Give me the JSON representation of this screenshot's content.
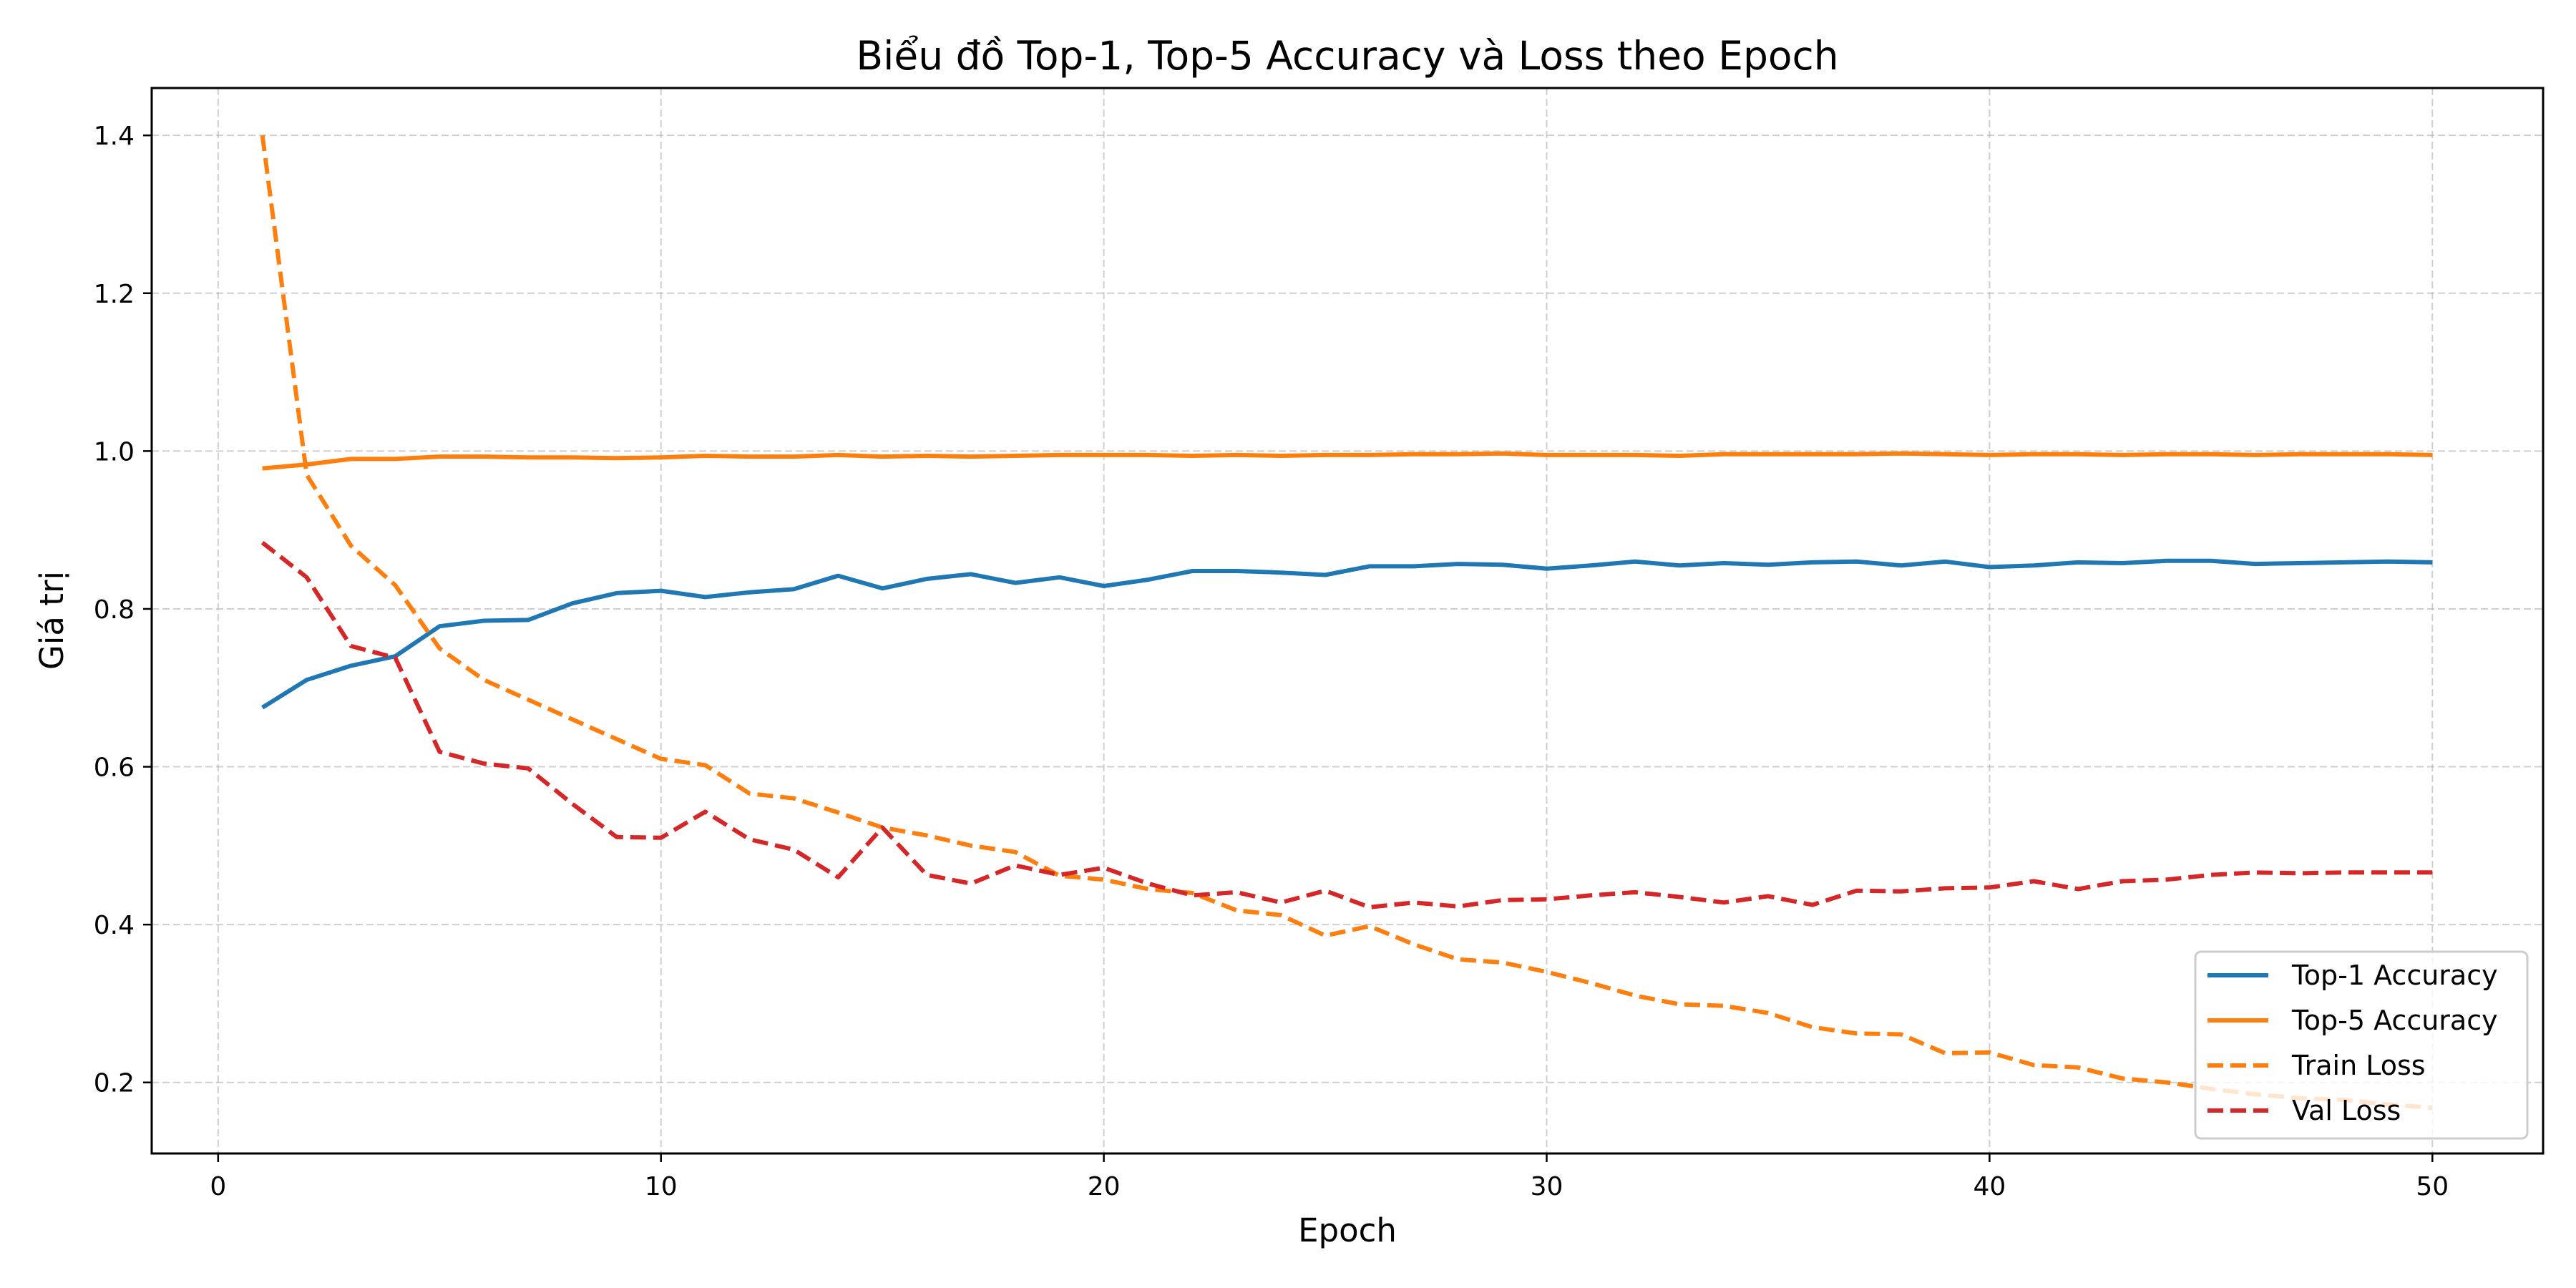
{
  "chart_data": {
    "type": "line",
    "title": "Biểu đồ Top-1, Top-5 Accuracy và Loss theo Epoch",
    "xlabel": "Epoch",
    "ylabel": "Giá trị",
    "xlim": [
      -1.5,
      52.5
    ],
    "ylim": [
      0.11,
      1.46
    ],
    "xticks": [
      0,
      10,
      20,
      30,
      40,
      50
    ],
    "yticks": [
      0.2,
      0.4,
      0.6,
      0.8,
      1.0,
      1.2,
      1.4
    ],
    "grid": true,
    "legend_position": "lower right",
    "x": [
      1,
      2,
      3,
      4,
      5,
      6,
      7,
      8,
      9,
      10,
      11,
      12,
      13,
      14,
      15,
      16,
      17,
      18,
      19,
      20,
      21,
      22,
      23,
      24,
      25,
      26,
      27,
      28,
      29,
      30,
      31,
      32,
      33,
      34,
      35,
      36,
      37,
      38,
      39,
      40,
      41,
      42,
      43,
      44,
      45,
      46,
      47,
      48,
      49,
      50
    ],
    "series": [
      {
        "name": "Top-1 Accuracy",
        "color": "#1f77b4",
        "dash": "solid",
        "values": [
          0.675,
          0.71,
          0.728,
          0.74,
          0.778,
          0.785,
          0.786,
          0.807,
          0.82,
          0.823,
          0.815,
          0.821,
          0.825,
          0.842,
          0.826,
          0.838,
          0.844,
          0.833,
          0.84,
          0.829,
          0.837,
          0.848,
          0.848,
          0.846,
          0.843,
          0.854,
          0.854,
          0.857,
          0.856,
          0.851,
          0.855,
          0.86,
          0.855,
          0.858,
          0.856,
          0.859,
          0.86,
          0.855,
          0.86,
          0.853,
          0.855,
          0.859,
          0.858,
          0.861,
          0.861,
          0.857,
          0.858,
          0.859,
          0.86,
          0.859
        ]
      },
      {
        "name": "Top-5 Accuracy",
        "color": "#ff7f0e",
        "dash": "solid",
        "values": [
          0.978,
          0.983,
          0.99,
          0.99,
          0.993,
          0.993,
          0.992,
          0.992,
          0.991,
          0.992,
          0.994,
          0.993,
          0.993,
          0.995,
          0.993,
          0.994,
          0.993,
          0.994,
          0.995,
          0.995,
          0.995,
          0.994,
          0.995,
          0.994,
          0.995,
          0.995,
          0.996,
          0.996,
          0.997,
          0.995,
          0.995,
          0.995,
          0.994,
          0.996,
          0.996,
          0.996,
          0.996,
          0.997,
          0.996,
          0.995,
          0.996,
          0.996,
          0.995,
          0.996,
          0.996,
          0.995,
          0.996,
          0.996,
          0.996,
          0.995
        ]
      },
      {
        "name": "Train Loss",
        "color": "#ff7f0e",
        "dash": "dashed",
        "values": [
          1.4,
          0.97,
          0.88,
          0.83,
          0.75,
          0.71,
          0.685,
          0.66,
          0.635,
          0.61,
          0.602,
          0.566,
          0.56,
          0.542,
          0.523,
          0.513,
          0.5,
          0.492,
          0.462,
          0.457,
          0.445,
          0.44,
          0.418,
          0.412,
          0.386,
          0.398,
          0.375,
          0.356,
          0.352,
          0.34,
          0.326,
          0.31,
          0.299,
          0.297,
          0.288,
          0.27,
          0.262,
          0.261,
          0.237,
          0.238,
          0.222,
          0.219,
          0.205,
          0.2,
          0.192,
          0.185,
          0.18,
          0.178,
          0.172,
          0.168
        ]
      },
      {
        "name": "Val Loss",
        "color": "#d62728",
        "dash": "dashed",
        "values": [
          0.884,
          0.84,
          0.753,
          0.738,
          0.619,
          0.604,
          0.598,
          0.553,
          0.511,
          0.51,
          0.543,
          0.508,
          0.495,
          0.46,
          0.523,
          0.463,
          0.452,
          0.475,
          0.463,
          0.472,
          0.452,
          0.437,
          0.441,
          0.428,
          0.443,
          0.422,
          0.428,
          0.423,
          0.431,
          0.432,
          0.437,
          0.441,
          0.435,
          0.428,
          0.436,
          0.425,
          0.443,
          0.442,
          0.446,
          0.447,
          0.455,
          0.445,
          0.455,
          0.457,
          0.463,
          0.466,
          0.465,
          0.466,
          0.466,
          0.466
        ]
      }
    ]
  }
}
